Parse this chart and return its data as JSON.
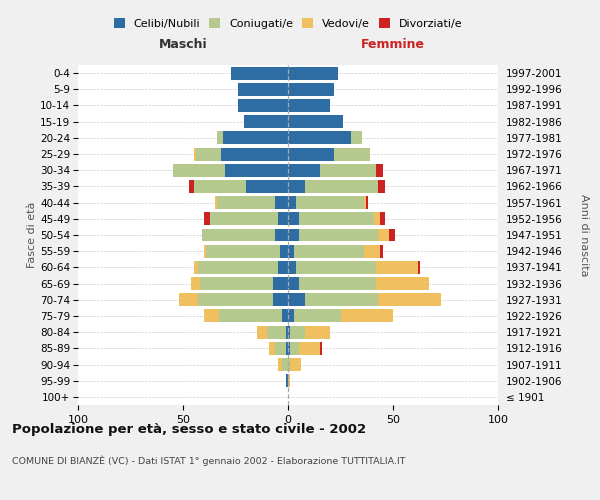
{
  "age_groups": [
    "100+",
    "95-99",
    "90-94",
    "85-89",
    "80-84",
    "75-79",
    "70-74",
    "65-69",
    "60-64",
    "55-59",
    "50-54",
    "45-49",
    "40-44",
    "35-39",
    "30-34",
    "25-29",
    "20-24",
    "15-19",
    "10-14",
    "5-9",
    "0-4"
  ],
  "birth_years": [
    "≤ 1901",
    "1902-1906",
    "1907-1911",
    "1912-1916",
    "1917-1921",
    "1922-1926",
    "1927-1931",
    "1932-1936",
    "1937-1941",
    "1942-1946",
    "1947-1951",
    "1952-1956",
    "1957-1961",
    "1962-1966",
    "1967-1971",
    "1972-1976",
    "1977-1981",
    "1982-1986",
    "1987-1991",
    "1992-1996",
    "1997-2001"
  ],
  "colors": {
    "celibi": "#2e6da4",
    "coniugati": "#b5c98e",
    "vedovi": "#f0c060",
    "divorziati": "#cc2222"
  },
  "male_celibi": [
    0,
    1,
    0,
    1,
    1,
    3,
    7,
    7,
    5,
    4,
    6,
    5,
    6,
    20,
    30,
    32,
    31,
    21,
    24,
    24,
    27
  ],
  "male_coniugati": [
    0,
    0,
    3,
    5,
    9,
    30,
    36,
    35,
    38,
    35,
    35,
    32,
    28,
    25,
    25,
    12,
    3,
    0,
    0,
    0,
    0
  ],
  "male_vedovi": [
    0,
    0,
    2,
    3,
    5,
    7,
    9,
    4,
    2,
    1,
    0,
    0,
    1,
    0,
    0,
    1,
    0,
    0,
    0,
    0,
    0
  ],
  "male_divorziati": [
    0,
    0,
    0,
    0,
    0,
    0,
    0,
    0,
    0,
    0,
    0,
    3,
    0,
    2,
    0,
    0,
    0,
    0,
    0,
    0,
    0
  ],
  "female_nubili": [
    0,
    0,
    0,
    1,
    1,
    3,
    8,
    5,
    4,
    3,
    5,
    5,
    4,
    8,
    15,
    22,
    30,
    26,
    20,
    22,
    24
  ],
  "female_coniugate": [
    0,
    0,
    1,
    4,
    7,
    22,
    35,
    37,
    38,
    33,
    38,
    36,
    32,
    35,
    27,
    17,
    5,
    0,
    0,
    0,
    0
  ],
  "female_vedove": [
    0,
    1,
    5,
    10,
    12,
    25,
    30,
    25,
    20,
    8,
    5,
    3,
    1,
    0,
    0,
    0,
    0,
    0,
    0,
    0,
    0
  ],
  "female_divorziate": [
    0,
    0,
    0,
    1,
    0,
    0,
    0,
    0,
    1,
    1,
    3,
    2,
    1,
    3,
    3,
    0,
    0,
    0,
    0,
    0,
    0
  ],
  "xlim": 100,
  "bg_color": "#f0f0f0",
  "plot_bg": "#ffffff",
  "title": "Popolazione per età, sesso e stato civile - 2002",
  "subtitle": "COMUNE DI BIANZÈ (VC) - Dati ISTAT 1° gennaio 2002 - Elaborazione TUTTITALIA.IT",
  "ylabel_left": "Fasce di età",
  "ylabel_right": "Anni di nascita",
  "label_maschi": "Maschi",
  "label_femmine": "Femmine",
  "legend_labels": [
    "Celibi/Nubili",
    "Coniugati/e",
    "Vedovi/e",
    "Divorziati/e"
  ]
}
